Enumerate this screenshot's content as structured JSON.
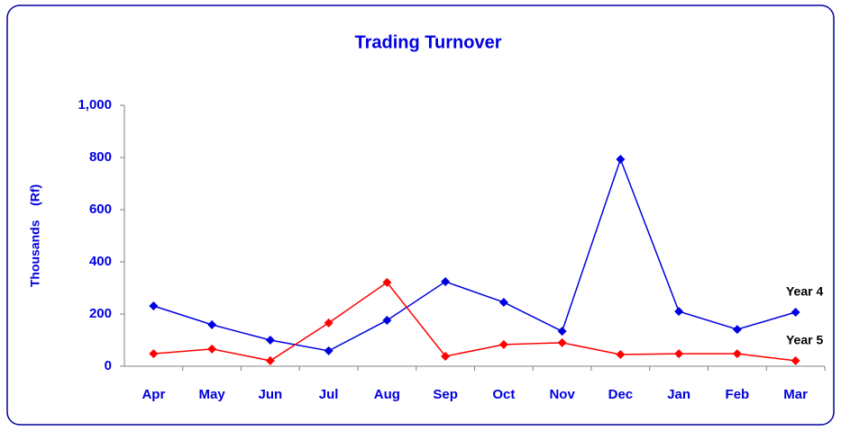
{
  "chart_data": {
    "type": "line",
    "title": "Trading Turnover",
    "y_label": "Thousands    (Rf)",
    "categories": [
      "Apr",
      "May",
      "Jun",
      "Jul",
      "Aug",
      "Sep",
      "Oct",
      "Nov",
      "Dec",
      "Jan",
      "Feb",
      "Mar"
    ],
    "series": [
      {
        "name": "Year 4",
        "color": "#0000e0",
        "values": [
          231,
          159,
          100,
          59,
          176,
          324,
          245,
          134,
          793,
          210,
          141,
          207
        ]
      },
      {
        "name": "Year 5",
        "color": "#ff0000",
        "values": [
          48,
          66,
          21,
          166,
          321,
          38,
          83,
          90,
          45,
          48,
          48,
          21
        ]
      }
    ],
    "ylim": [
      0,
      1000
    ],
    "yticks": [
      0,
      200,
      400,
      600,
      800,
      {
        "value": 1000,
        "label": "1,000"
      }
    ]
  }
}
